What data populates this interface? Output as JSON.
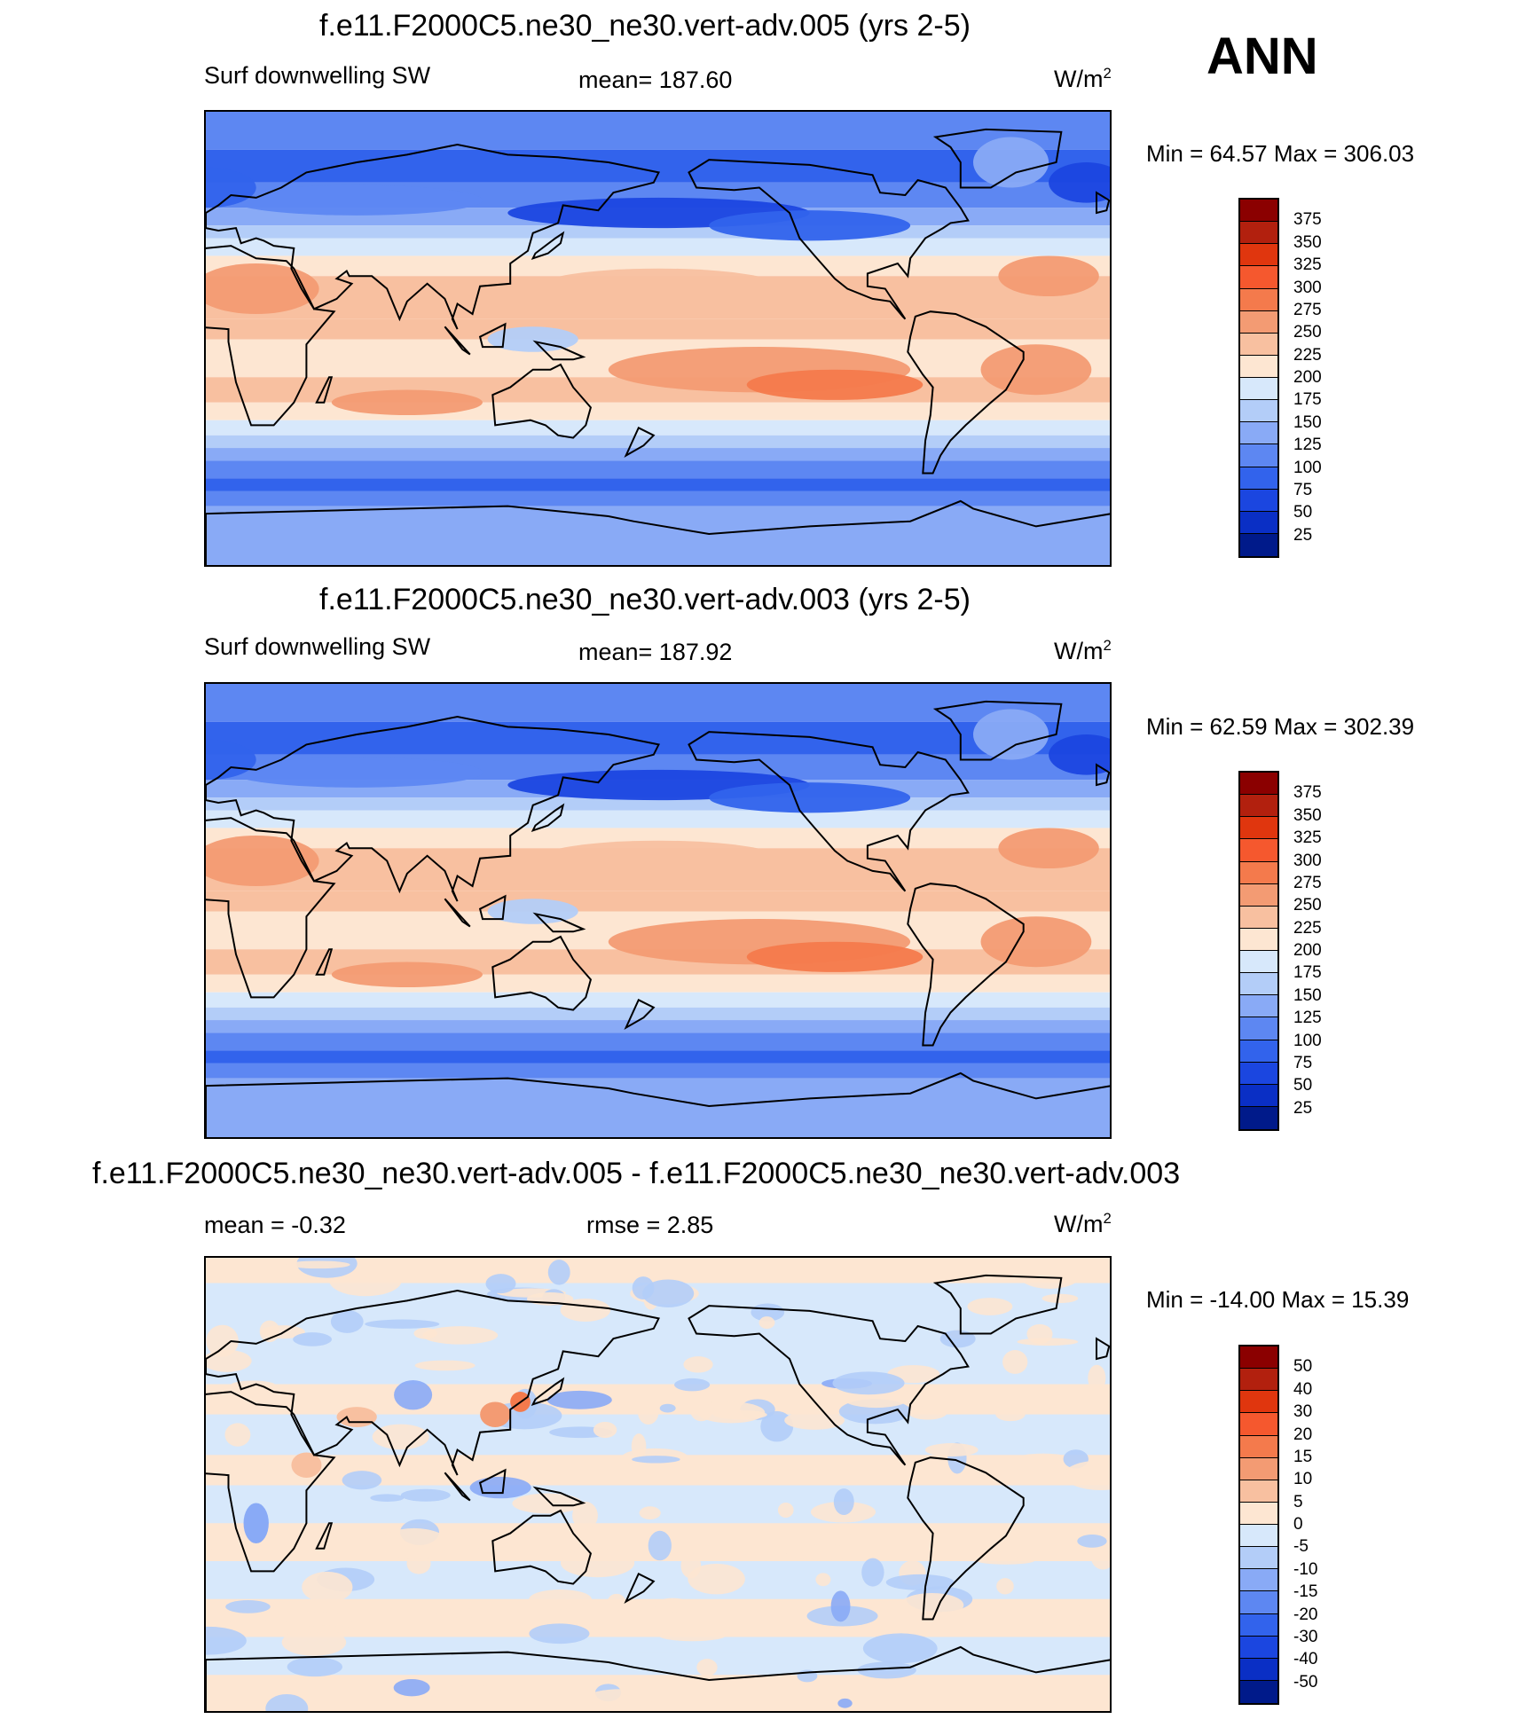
{
  "season": "ANN",
  "panels": [
    {
      "title": "f.e11.F2000C5.ne30_ne30.vert-adv.005 (yrs 2-5)",
      "left_label": "Surf downwelling SW",
      "center_label": "mean= 187.60",
      "units": "W/m",
      "units_sup": "2",
      "minmax": "Min =  64.57 Max = 306.03",
      "field": "absolute"
    },
    {
      "title": "f.e11.F2000C5.ne30_ne30.vert-adv.003 (yrs 2-5)",
      "left_label": "Surf downwelling SW",
      "center_label": "mean= 187.92",
      "units": "W/m",
      "units_sup": "2",
      "minmax": "Min =  62.59 Max = 302.39",
      "field": "absolute"
    },
    {
      "title": "f.e11.F2000C5.ne30_ne30.vert-adv.005 - f.e11.F2000C5.ne30_ne30.vert-adv.003",
      "left_label": "mean =  -0.32",
      "center_label": "rmse =   2.85",
      "units": "W/m",
      "units_sup": "2",
      "minmax": "Min = -14.00 Max =  15.39",
      "field": "difference"
    }
  ],
  "colorbars": {
    "absolute": {
      "labels": [
        "375",
        "350",
        "325",
        "300",
        "275",
        "250",
        "225",
        "200",
        "175",
        "150",
        "125",
        "100",
        "75",
        "50",
        "25"
      ],
      "colors": [
        "#8b0000",
        "#b2200e",
        "#e0360e",
        "#f5582e",
        "#f47a4c",
        "#f39b73",
        "#f8c0a0",
        "#fde6d2",
        "#d7e8fb",
        "#b3cdf8",
        "#89aaf6",
        "#5d87f2",
        "#3263ec",
        "#1b46e0",
        "#0a2fc5",
        "#001a8a"
      ]
    },
    "difference": {
      "labels": [
        "50",
        "40",
        "30",
        "20",
        "15",
        "10",
        "5",
        "0",
        "-5",
        "-10",
        "-15",
        "-20",
        "-30",
        "-40",
        "-50"
      ],
      "colors": [
        "#8b0000",
        "#b2200e",
        "#e0360e",
        "#f5582e",
        "#f47a4c",
        "#f39b73",
        "#f8c0a0",
        "#fde6d2",
        "#d7e8fb",
        "#b3cdf8",
        "#89aaf6",
        "#5d87f2",
        "#3263ec",
        "#1b46e0",
        "#0a2fc5",
        "#001a8a"
      ]
    }
  }
}
